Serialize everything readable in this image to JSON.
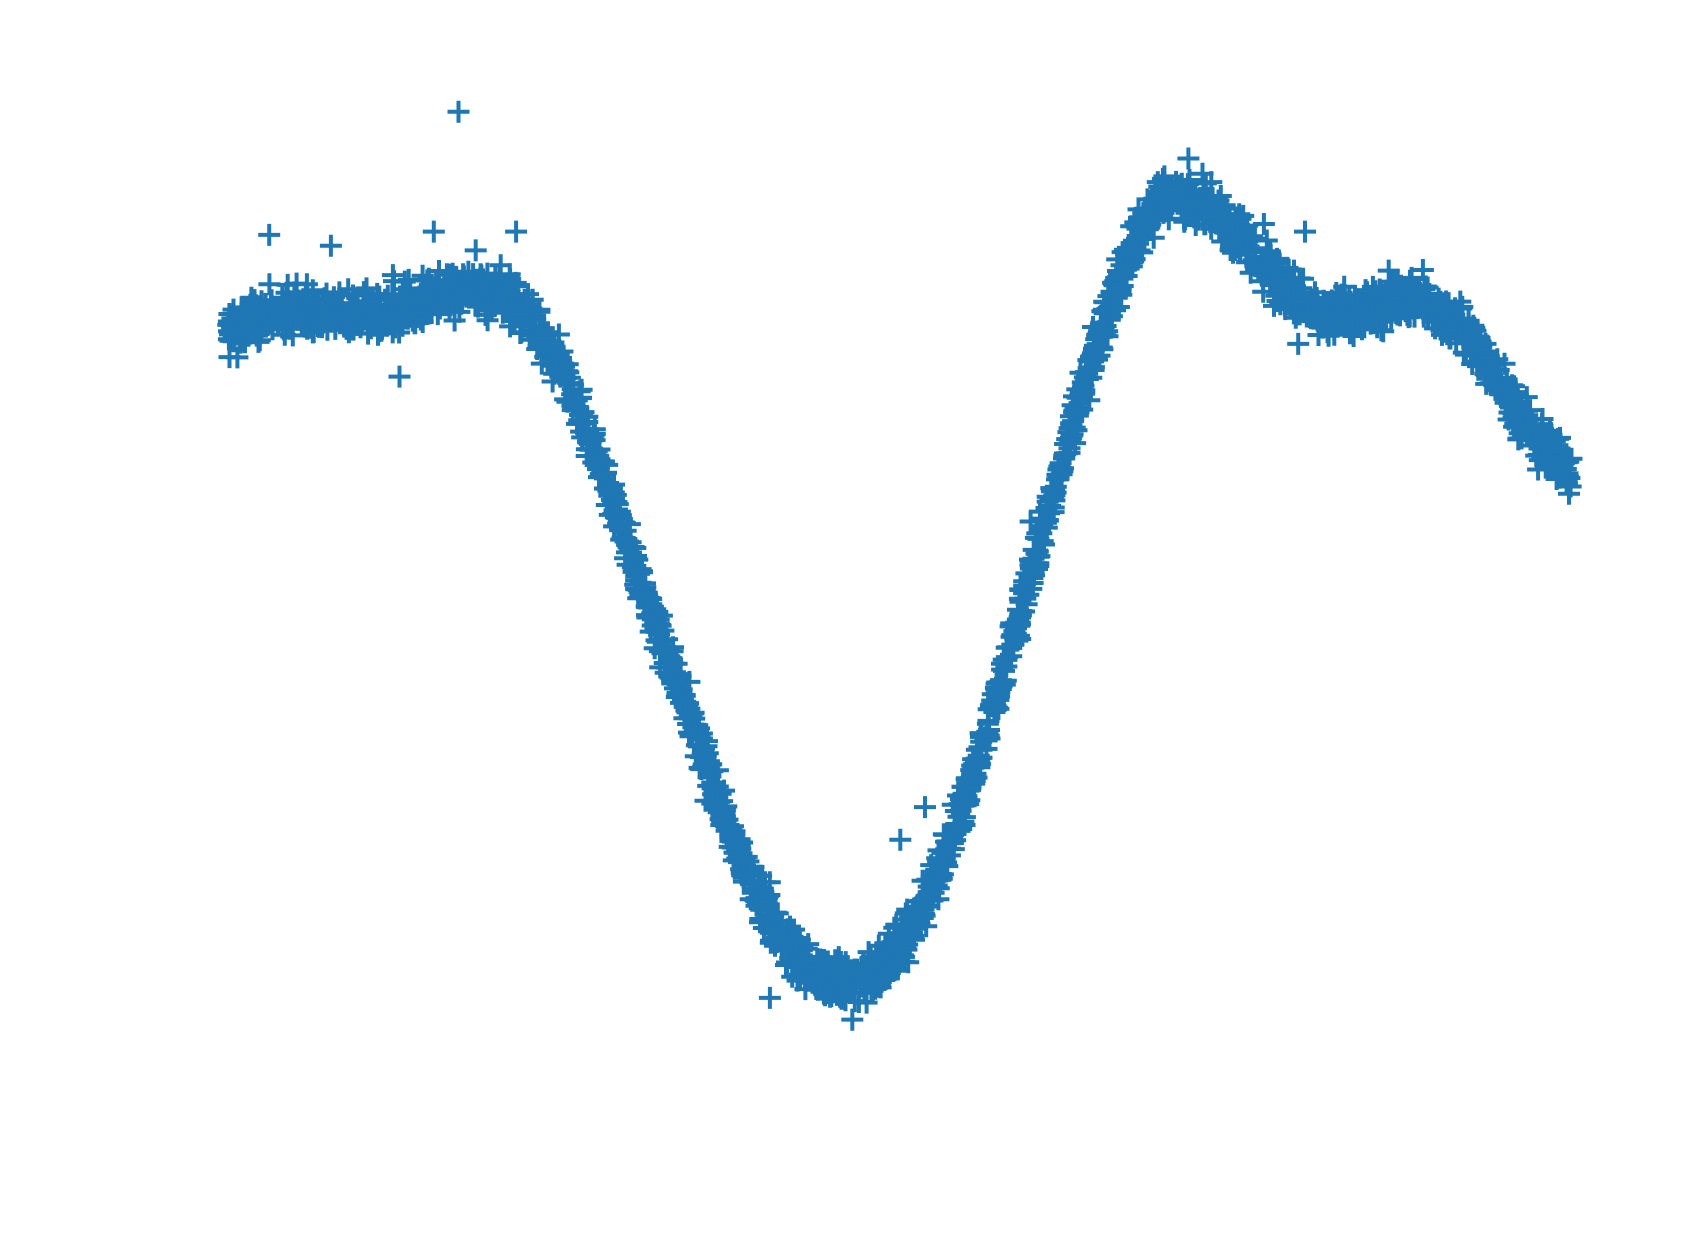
{
  "chart_data": {
    "type": "scatter",
    "marker": "plus",
    "color": "#1f77b4",
    "axes_visible": false,
    "grid": false,
    "xlim": [
      0,
      1
    ],
    "ylim": [
      0,
      1
    ],
    "x_extent": [
      0.0,
      0.98
    ],
    "curve": [
      [
        0.0,
        0.745
      ],
      [
        0.03,
        0.76
      ],
      [
        0.06,
        0.765
      ],
      [
        0.09,
        0.76
      ],
      [
        0.12,
        0.765
      ],
      [
        0.15,
        0.778
      ],
      [
        0.18,
        0.785
      ],
      [
        0.205,
        0.78
      ],
      [
        0.22,
        0.76
      ],
      [
        0.24,
        0.72
      ],
      [
        0.26,
        0.66
      ],
      [
        0.28,
        0.59
      ],
      [
        0.3,
        0.52
      ],
      [
        0.32,
        0.45
      ],
      [
        0.34,
        0.38
      ],
      [
        0.36,
        0.305
      ],
      [
        0.38,
        0.245
      ],
      [
        0.4,
        0.195
      ],
      [
        0.42,
        0.165
      ],
      [
        0.44,
        0.15
      ],
      [
        0.46,
        0.15
      ],
      [
        0.48,
        0.165
      ],
      [
        0.5,
        0.2
      ],
      [
        0.52,
        0.255
      ],
      [
        0.54,
        0.325
      ],
      [
        0.56,
        0.41
      ],
      [
        0.58,
        0.5
      ],
      [
        0.6,
        0.59
      ],
      [
        0.62,
        0.68
      ],
      [
        0.64,
        0.76
      ],
      [
        0.66,
        0.83
      ],
      [
        0.68,
        0.87
      ],
      [
        0.7,
        0.868
      ],
      [
        0.72,
        0.855
      ],
      [
        0.74,
        0.835
      ],
      [
        0.76,
        0.8
      ],
      [
        0.78,
        0.775
      ],
      [
        0.8,
        0.76
      ],
      [
        0.82,
        0.765
      ],
      [
        0.84,
        0.77
      ],
      [
        0.86,
        0.778
      ],
      [
        0.88,
        0.77
      ],
      [
        0.9,
        0.745
      ],
      [
        0.92,
        0.715
      ],
      [
        0.94,
        0.67
      ],
      [
        0.96,
        0.64
      ],
      [
        0.98,
        0.615
      ]
    ],
    "point_count": 3000,
    "noise_sd": 0.01,
    "outliers": [
      [
        0.168,
        0.948
      ],
      [
        0.03,
        0.835
      ],
      [
        0.075,
        0.825
      ],
      [
        0.15,
        0.838
      ],
      [
        0.21,
        0.838
      ],
      [
        0.125,
        0.705
      ],
      [
        0.7,
        0.905
      ],
      [
        0.755,
        0.845
      ],
      [
        0.785,
        0.838
      ],
      [
        0.78,
        0.735
      ],
      [
        0.49,
        0.28
      ],
      [
        0.508,
        0.31
      ],
      [
        0.395,
        0.135
      ],
      [
        0.455,
        0.115
      ],
      [
        0.585,
        0.572
      ]
    ]
  }
}
